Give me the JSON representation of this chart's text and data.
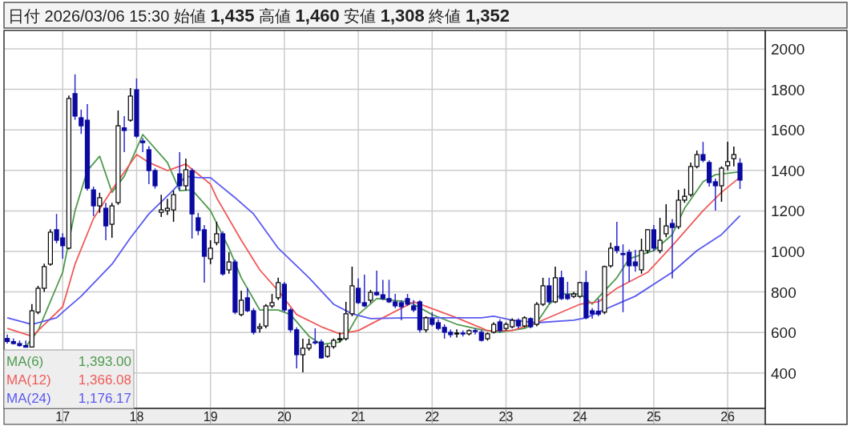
{
  "chart_data": {
    "type": "candlestick",
    "title": "日付 2026/03/06 15:30 始値 **1,435** 高値 **1,460** 安値 **1,308** 終値 **1,352**",
    "x": [
      "2016-04",
      "2016-05",
      "2016-06",
      "2016-07",
      "2016-08",
      "2016-09",
      "2016-10",
      "2016-11",
      "2016-12",
      "2017-01",
      "2017-02",
      "2017-03",
      "2017-04",
      "2017-05",
      "2017-06",
      "2017-07",
      "2017-08",
      "2017-09",
      "2017-10",
      "2017-11",
      "2017-12",
      "2018-01",
      "2018-02",
      "2018-03",
      "2018-04",
      "2018-05",
      "2018-06",
      "2018-07",
      "2018-08",
      "2018-09",
      "2018-10",
      "2018-11",
      "2018-12",
      "2019-01",
      "2019-02",
      "2019-03",
      "2019-04",
      "2019-05",
      "2019-06",
      "2019-07",
      "2019-08",
      "2019-09",
      "2019-10",
      "2019-11",
      "2019-12",
      "2020-01",
      "2020-02",
      "2020-03",
      "2020-04",
      "2020-05",
      "2020-06",
      "2020-07",
      "2020-08",
      "2020-09",
      "2020-10",
      "2020-11",
      "2020-12",
      "2021-01",
      "2021-02",
      "2021-03",
      "2021-04",
      "2021-05",
      "2021-06",
      "2021-07",
      "2021-08",
      "2021-09",
      "2021-10",
      "2021-11",
      "2021-12",
      "2022-01",
      "2022-02",
      "2022-03",
      "2022-04",
      "2022-05",
      "2022-06",
      "2022-07",
      "2022-08",
      "2022-09",
      "2022-10",
      "2022-11",
      "2022-12",
      "2023-01",
      "2023-02",
      "2023-03",
      "2023-04",
      "2023-05",
      "2023-06",
      "2023-07",
      "2023-08",
      "2023-09",
      "2023-10",
      "2023-11",
      "2023-12",
      "2024-01",
      "2024-02",
      "2024-03",
      "2024-04",
      "2024-05",
      "2024-06",
      "2024-07",
      "2024-08",
      "2024-09",
      "2024-10",
      "2024-11",
      "2024-12",
      "2025-01",
      "2025-02",
      "2025-03",
      "2025-04",
      "2025-05",
      "2025-06",
      "2025-07",
      "2025-08",
      "2025-09",
      "2025-10",
      "2025-11",
      "2025-12",
      "2026-01",
      "2026-02",
      "2026-03"
    ],
    "ohlc": [
      [
        570,
        590,
        545,
        555
      ],
      [
        555,
        570,
        540,
        545
      ],
      [
        545,
        560,
        530,
        535
      ],
      [
        535,
        560,
        525,
        527
      ],
      [
        528,
        740,
        525,
        707
      ],
      [
        700,
        830,
        690,
        818
      ],
      [
        818,
        940,
        800,
        925
      ],
      [
        937,
        1110,
        930,
        1095
      ],
      [
        1107,
        1185,
        1040,
        1055
      ],
      [
        1067,
        1090,
        964,
        1028
      ],
      [
        1016,
        1770,
        1010,
        1755
      ],
      [
        1779,
        1874,
        1650,
        1668
      ],
      [
        1660,
        1700,
        1580,
        1620
      ],
      [
        1648,
        1727,
        1300,
        1312
      ],
      [
        1304,
        1320,
        1174,
        1225
      ],
      [
        1225,
        1290,
        1190,
        1265
      ],
      [
        1213,
        1240,
        1055,
        1126
      ],
      [
        1134,
        1240,
        1067,
        1225
      ],
      [
        1241,
        1696,
        1230,
        1620
      ],
      [
        1610,
        1668,
        1490,
        1597
      ],
      [
        1648,
        1806,
        1640,
        1767
      ],
      [
        1798,
        1854,
        1560,
        1569
      ],
      [
        1545,
        1560,
        1490,
        1537
      ],
      [
        1502,
        1520,
        1332,
        1399
      ],
      [
        1399,
        1410,
        1310,
        1324
      ],
      [
        1193,
        1280,
        1170,
        1205
      ],
      [
        1201,
        1260,
        1180,
        1213
      ],
      [
        1205,
        1300,
        1146,
        1280
      ],
      [
        1383,
        1490,
        1300,
        1324
      ],
      [
        1324,
        1458,
        1300,
        1403
      ],
      [
        1399,
        1410,
        1063,
        1185
      ],
      [
        1166,
        1190,
        1080,
        1103
      ],
      [
        1107,
        1130,
        846,
        976
      ],
      [
        964,
        1055,
        937,
        1016
      ],
      [
        1043,
        1146,
        1030,
        1087
      ],
      [
        1087,
        1100,
        880,
        889
      ],
      [
        909,
        996,
        890,
        948
      ],
      [
        948,
        960,
        690,
        700
      ],
      [
        688,
        806,
        680,
        759
      ],
      [
        771,
        820,
        700,
        707
      ],
      [
        707,
        720,
        589,
        601
      ],
      [
        620,
        645,
        600,
        628
      ],
      [
        632,
        740,
        620,
        731
      ],
      [
        731,
        790,
        720,
        747
      ],
      [
        771,
        870,
        760,
        846
      ],
      [
        838,
        850,
        700,
        711
      ],
      [
        711,
        720,
        600,
        613
      ],
      [
        613,
        625,
        423,
        490
      ],
      [
        490,
        569,
        403,
        522
      ],
      [
        522,
        569,
        510,
        541
      ],
      [
        553,
        620,
        540,
        549
      ],
      [
        553,
        565,
        470,
        474
      ],
      [
        482,
        540,
        475,
        530
      ],
      [
        530,
        570,
        520,
        561
      ],
      [
        565,
        600,
        550,
        569
      ],
      [
        569,
        751,
        560,
        692
      ],
      [
        692,
        925,
        680,
        830
      ],
      [
        818,
        866,
        740,
        747
      ],
      [
        747,
        885,
        725,
        731
      ],
      [
        759,
        810,
        745,
        798
      ],
      [
        798,
        905,
        780,
        786
      ],
      [
        786,
        860,
        760,
        767
      ],
      [
        767,
        860,
        745,
        751
      ],
      [
        751,
        790,
        720,
        731
      ],
      [
        747,
        760,
        660,
        727
      ],
      [
        767,
        790,
        730,
        739
      ],
      [
        731,
        760,
        700,
        711
      ],
      [
        751,
        760,
        600,
        613
      ],
      [
        613,
        680,
        600,
        672
      ],
      [
        668,
        700,
        630,
        640
      ],
      [
        648,
        665,
        610,
        620
      ],
      [
        625,
        640,
        569,
        601
      ],
      [
        601,
        615,
        575,
        589
      ],
      [
        593,
        615,
        575,
        597
      ],
      [
        597,
        610,
        580,
        593
      ],
      [
        593,
        615,
        585,
        609
      ],
      [
        609,
        620,
        590,
        605
      ],
      [
        601,
        610,
        555,
        561
      ],
      [
        569,
        600,
        560,
        593
      ],
      [
        601,
        650,
        595,
        640
      ],
      [
        652,
        665,
        600,
        609
      ],
      [
        620,
        650,
        610,
        640
      ],
      [
        628,
        670,
        620,
        660
      ],
      [
        660,
        670,
        620,
        632
      ],
      [
        632,
        680,
        625,
        672
      ],
      [
        668,
        675,
        620,
        628
      ],
      [
        640,
        750,
        630,
        739
      ],
      [
        739,
        870,
        730,
        830
      ],
      [
        830,
        870,
        740,
        751
      ],
      [
        751,
        925,
        745,
        870
      ],
      [
        870,
        905,
        760,
        767
      ],
      [
        786,
        850,
        760,
        767
      ],
      [
        778,
        800,
        770,
        790
      ],
      [
        778,
        850,
        770,
        846
      ],
      [
        846,
        905,
        665,
        672
      ],
      [
        707,
        720,
        668,
        692
      ],
      [
        705,
        767,
        680,
        690
      ],
      [
        700,
        930,
        690,
        925
      ],
      [
        929,
        1043,
        920,
        1016
      ],
      [
        1024,
        1146,
        990,
        1004
      ],
      [
        990,
        1035,
        700,
        984
      ],
      [
        996,
        1010,
        850,
        929
      ],
      [
        948,
        1008,
        900,
        929
      ],
      [
        909,
        1063,
        890,
        1004
      ],
      [
        1004,
        1110,
        990,
        1107
      ],
      [
        1107,
        1130,
        1000,
        1016
      ],
      [
        1004,
        1166,
        990,
        1055
      ],
      [
        1087,
        1233,
        1070,
        1126
      ],
      [
        1138,
        1160,
        866,
        1118
      ],
      [
        1122,
        1304,
        1110,
        1253
      ],
      [
        1253,
        1310,
        1240,
        1272
      ],
      [
        1280,
        1439,
        1270,
        1419
      ],
      [
        1419,
        1498,
        1410,
        1478
      ],
      [
        1478,
        1541,
        1440,
        1450
      ],
      [
        1439,
        1450,
        1320,
        1340
      ],
      [
        1344,
        1360,
        1201,
        1324
      ],
      [
        1324,
        1420,
        1245,
        1411
      ],
      [
        1423,
        1541,
        1400,
        1443
      ],
      [
        1458,
        1518,
        1420,
        1478
      ],
      [
        1435,
        1460,
        1308,
        1352
      ]
    ],
    "series": [
      {
        "name": "MA(6)",
        "type": "line",
        "color": "#4f9a4f",
        "x": [
          "2016-07",
          "2016-09",
          "2017-01",
          "2017-03",
          "2017-05",
          "2017-07",
          "2017-09",
          "2017-11",
          "2018-02",
          "2018-06",
          "2018-08",
          "2018-10",
          "2019-01",
          "2019-04",
          "2019-06",
          "2019-09",
          "2019-12",
          "2020-02",
          "2020-05",
          "2020-07",
          "2020-10",
          "2020-11",
          "2021-01",
          "2021-04",
          "2021-09",
          "2021-10",
          "2022-01",
          "2022-05",
          "2022-09",
          "2022-12",
          "2023-04",
          "2023-06",
          "2023-08",
          "2023-10",
          "2024-01",
          "2024-02",
          "2024-03",
          "2024-07",
          "2024-09",
          "2025-01",
          "2025-04",
          "2025-06",
          "2025-09",
          "2025-11",
          "2026-03"
        ],
        "values": [
          530,
          609,
          897,
          1201,
          1399,
          1470,
          1292,
          1371,
          1577,
          1439,
          1300,
          1304,
          1201,
          1016,
          870,
          711,
          711,
          688,
          581,
          541,
          553,
          581,
          688,
          767,
          751,
          739,
          688,
          640,
          613,
          601,
          620,
          648,
          739,
          790,
          790,
          767,
          740,
          870,
          964,
          1004,
          1083,
          1213,
          1344,
          1379,
          1393
        ]
      },
      {
        "name": "MA(12)",
        "type": "line",
        "color": "#f05a5a",
        "x": [
          "2016-04",
          "2016-08",
          "2016-09",
          "2017-01",
          "2017-03",
          "2017-06",
          "2017-09",
          "2018-01",
          "2018-03",
          "2018-06",
          "2018-09",
          "2019-01",
          "2019-02",
          "2019-06",
          "2019-09",
          "2019-12",
          "2020-03",
          "2020-07",
          "2020-10",
          "2021-01",
          "2021-06",
          "2021-10",
          "2022-05",
          "2022-10",
          "2023-02",
          "2023-06",
          "2024-01",
          "2024-04",
          "2024-07",
          "2024-12",
          "2025-04",
          "2025-09",
          "2025-12",
          "2026-03"
        ],
        "values": [
          620,
          581,
          609,
          727,
          937,
          1162,
          1304,
          1478,
          1439,
          1399,
          1431,
          1332,
          1265,
          1055,
          909,
          806,
          688,
          628,
          593,
          609,
          688,
          751,
          672,
          609,
          609,
          648,
          739,
          751,
          818,
          897,
          1028,
          1201,
          1292,
          1366
        ]
      },
      {
        "name": "MA(24)",
        "type": "line",
        "color": "#5a5af0",
        "x": [
          "2016-04",
          "2016-08",
          "2016-12",
          "2017-01",
          "2017-04",
          "2017-09",
          "2017-12",
          "2018-03",
          "2018-07",
          "2018-09",
          "2018-11",
          "2019-01",
          "2019-05",
          "2019-08",
          "2019-12",
          "2020-05",
          "2020-09",
          "2020-12",
          "2021-03",
          "2021-09",
          "2022-09",
          "2022-11",
          "2023-02",
          "2023-06",
          "2023-12",
          "2024-02",
          "2024-04",
          "2024-10",
          "2025-04",
          "2025-08",
          "2025-12",
          "2026-03"
        ],
        "values": [
          672,
          640,
          672,
          700,
          779,
          937,
          1067,
          1185,
          1304,
          1371,
          1364,
          1364,
          1265,
          1185,
          1016,
          870,
          739,
          692,
          668,
          672,
          672,
          680,
          660,
          648,
          660,
          672,
          700,
          779,
          897,
          1004,
          1083,
          1176
        ]
      }
    ],
    "annotations": [
      "1,393.00",
      "1,366.08",
      "1,176.17"
    ],
    "xlim": [
      "2016-03-15",
      "2026-07-04"
    ],
    "xticks": [
      {
        "value": "2017-01",
        "label": "17"
      },
      {
        "value": "2018-01",
        "label": "18"
      },
      {
        "value": "2019-01",
        "label": "19"
      },
      {
        "value": "2020-01",
        "label": "20"
      },
      {
        "value": "2021-01",
        "label": "21"
      },
      {
        "value": "2022-01",
        "label": "22"
      },
      {
        "value": "2023-01",
        "label": "23"
      },
      {
        "value": "2024-01",
        "label": "24"
      },
      {
        "value": "2025-01",
        "label": "25"
      },
      {
        "value": "2026-01",
        "label": "26"
      }
    ],
    "ylim": [
      225,
      2091
    ],
    "yticks": [
      400,
      600,
      800,
      1000,
      1200,
      1400,
      1600,
      1800,
      2000
    ],
    "grid": true,
    "legend": "bottom left",
    "marker": "none"
  }
}
